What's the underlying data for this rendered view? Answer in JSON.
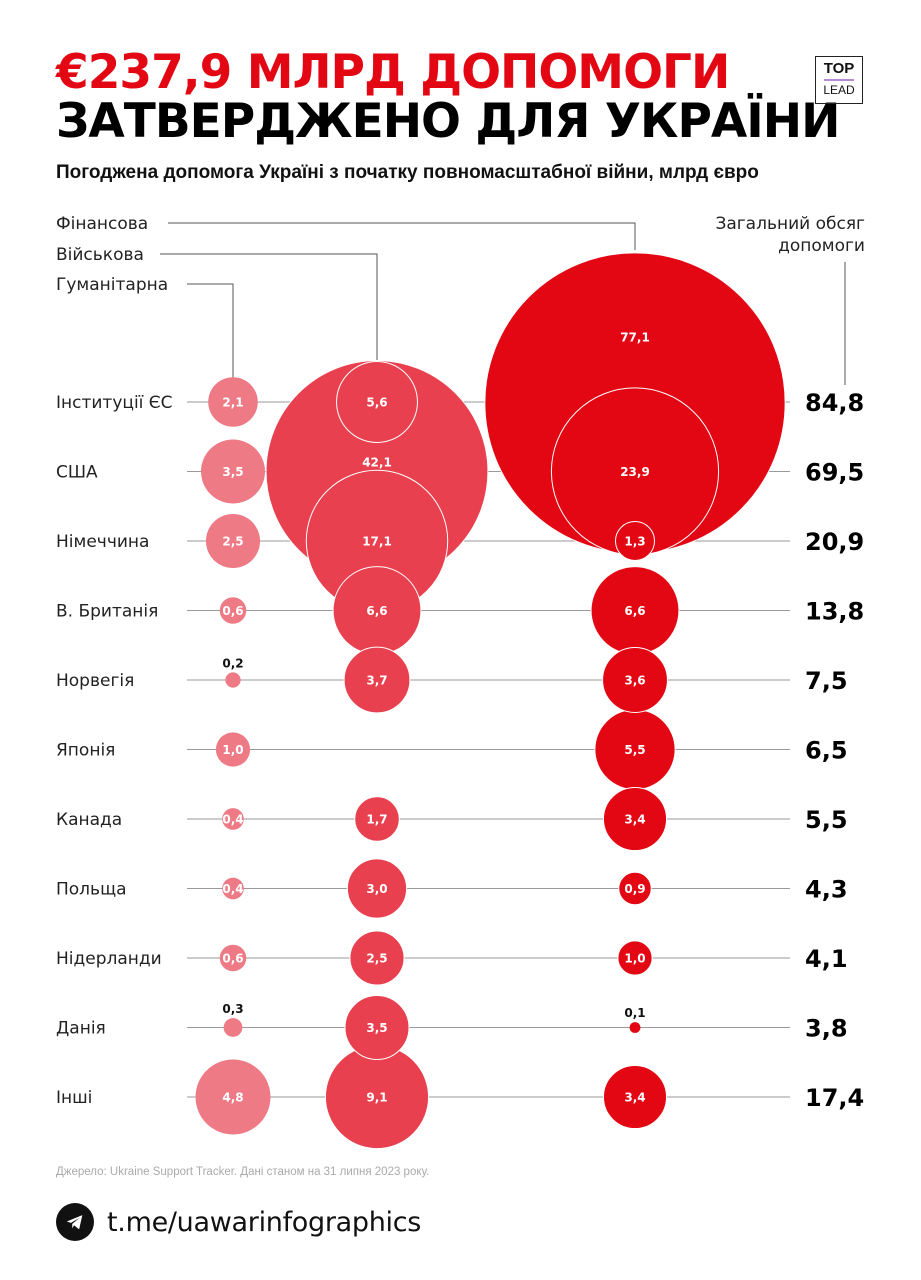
{
  "header": {
    "title_line1": "€237,9 МЛРД ДОПОМОГИ",
    "title_line2": "ЗАТВЕРДЖЕНО ДЛЯ УКРАЇНИ",
    "subtitle": "Погоджена допомога Україні з початку повномасштабної війни, млрд євро",
    "logo_top": "TOP",
    "logo_bottom": "LEAD"
  },
  "colors": {
    "humanitarian": "#ee7a86",
    "military": "#e8404f",
    "financial": "#e30613",
    "title_accent": "#e30613",
    "lines": "#9a9a9a"
  },
  "chart_data": {
    "type": "bubble",
    "title": "€237,9 млрд допомоги затверджено для України",
    "subtitle": "Погоджена допомога Україні з початку повномасштабної війни, млрд євро",
    "unit": "млрд євро",
    "series": [
      {
        "key": "humanitarian",
        "name": "Гуманітарна",
        "values": [
          2.1,
          3.5,
          2.5,
          0.6,
          0.2,
          1.0,
          0.4,
          0.4,
          0.6,
          0.3,
          4.8
        ],
        "labels": [
          "2,1",
          "3,5",
          "2,5",
          "0,6",
          "0,2",
          "1,0",
          "0,4",
          "0,4",
          "0,6",
          "0,3",
          "4,8"
        ]
      },
      {
        "key": "military",
        "name": "Військова",
        "values": [
          5.6,
          42.1,
          17.1,
          6.6,
          3.7,
          null,
          1.7,
          3.0,
          2.5,
          3.5,
          9.1
        ],
        "labels": [
          "5,6",
          "42,1",
          "17,1",
          "6,6",
          "3,7",
          "",
          "1,7",
          "3,0",
          "2,5",
          "3,5",
          "9,1"
        ]
      },
      {
        "key": "financial",
        "name": "Фінансова",
        "values": [
          77.1,
          23.9,
          1.3,
          6.6,
          3.6,
          5.5,
          3.4,
          0.9,
          1.0,
          0.1,
          3.4
        ],
        "labels": [
          "77,1",
          "23,9",
          "1,3",
          "6,6",
          "3,6",
          "5,5",
          "3,4",
          "0,9",
          "1,0",
          "0,1",
          "3,4"
        ]
      }
    ],
    "categories": [
      "Інституції ЄС",
      "США",
      "Німеччина",
      "В. Британія",
      "Норвегія",
      "Японія",
      "Канада",
      "Польща",
      "Нідерланди",
      "Данія",
      "Інші"
    ],
    "totals": [
      84.8,
      69.5,
      20.9,
      13.8,
      7.5,
      6.5,
      5.5,
      4.3,
      4.1,
      3.8,
      17.4
    ],
    "total_labels": [
      "84,8",
      "69,5",
      "20,9",
      "13,8",
      "7,5",
      "6,5",
      "5,5",
      "4,3",
      "4,1",
      "3,8",
      "17,4"
    ],
    "totals_header": [
      "Загальний обсяг",
      "допомоги"
    ],
    "legend_order": [
      "Фінансова",
      "Військова",
      "Гуманітарна"
    ]
  },
  "footer": {
    "source": "Джерело: Ukraine Support Tracker. Дані станом на 31 липня 2023 року.",
    "telegram_link": "t.me/uawarinfographics",
    "telegram_icon": "telegram-icon"
  }
}
